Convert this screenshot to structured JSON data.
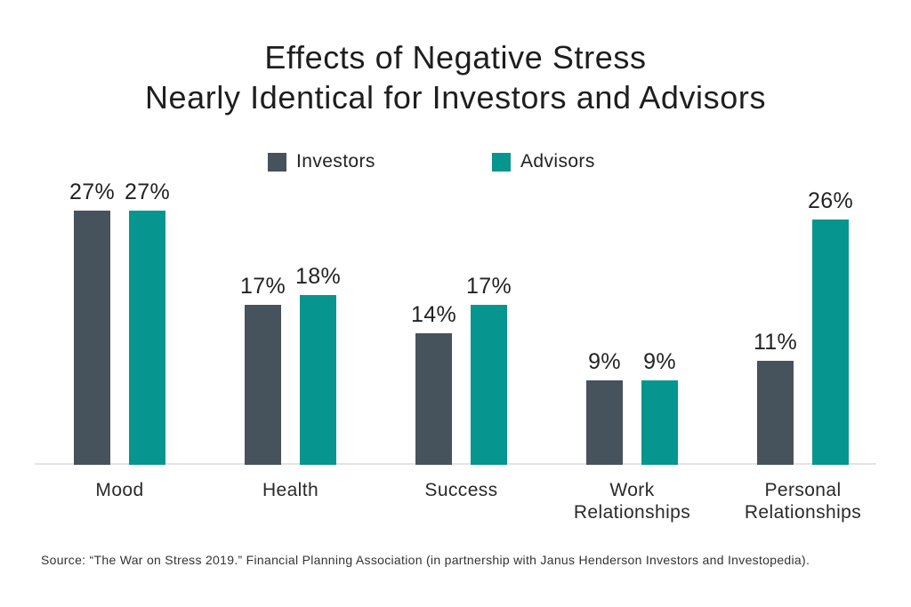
{
  "chart_data": {
    "type": "bar",
    "title": "Effects of Negative Stress\nNearly Identical for Investors and Advisors",
    "categories": [
      "Mood",
      "Health",
      "Success",
      "Work\nRelationships",
      "Personal\nRelationships"
    ],
    "series": [
      {
        "name": "Investors",
        "color": "#46525c",
        "values": [
          27,
          17,
          14,
          9,
          11
        ]
      },
      {
        "name": "Advisors",
        "color": "#06968f",
        "values": [
          27,
          18,
          17,
          9,
          26
        ]
      }
    ],
    "value_suffix": "%",
    "ylim": [
      0,
      30
    ],
    "grid": false,
    "legend_position": "top",
    "axis_line_color": "#e4e4e4",
    "source": "Source: “The War on Stress 2019.” Financial Planning Association (in partnership with Janus Henderson Investors and Investopedia)."
  }
}
